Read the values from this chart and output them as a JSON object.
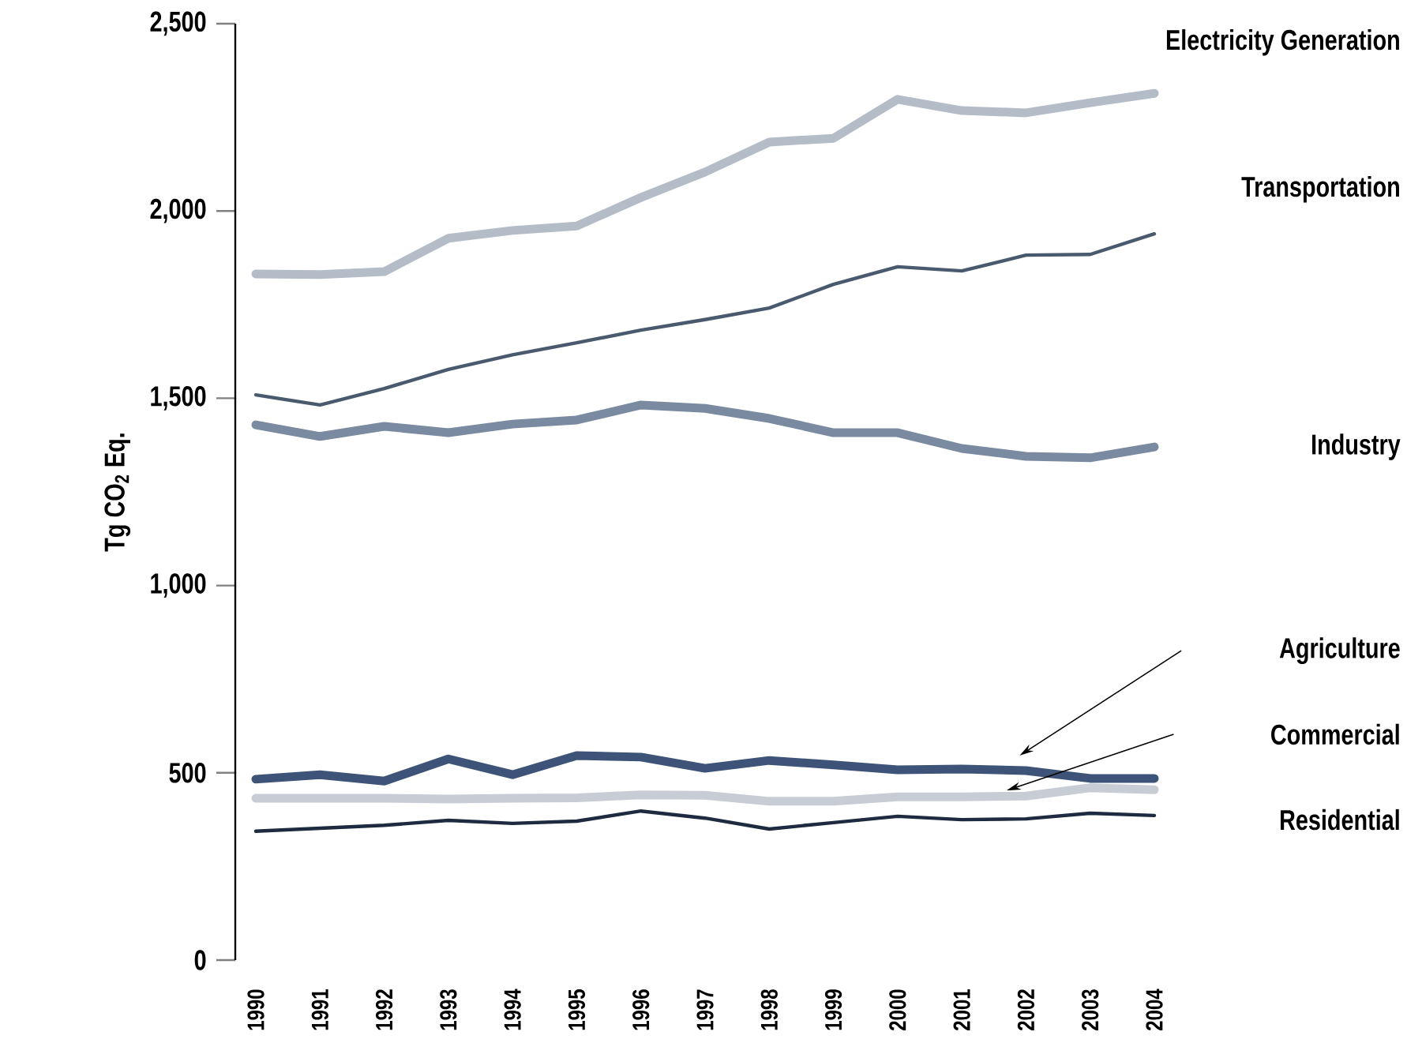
{
  "chart_data": {
    "type": "line",
    "ylabel": "Tg CO$_{2}$ Eq.",
    "categories": [
      "1990",
      "1991",
      "1992",
      "1993",
      "1994",
      "1995",
      "1996",
      "1997",
      "1998",
      "1999",
      "2000",
      "2001",
      "2002",
      "2003",
      "2004"
    ],
    "ylim": [
      0,
      2500
    ],
    "yticks": [
      0,
      500,
      {
        "value": 1000,
        "label": "1,000"
      },
      {
        "value": 1500,
        "label": "1,500"
      },
      {
        "value": 2000,
        "label": "2,000"
      },
      {
        "value": 2500,
        "label": "2,500"
      }
    ],
    "grid": false,
    "legend": false,
    "marker": "none",
    "line_style": "solid",
    "series": [
      {
        "name": "Electricity Generation",
        "color": "#b4bcc8",
        "values": [
          1832,
          1830,
          1838,
          1927,
          1948,
          1960,
          2036,
          2104,
          2184,
          2194,
          2298,
          2268,
          2262,
          2289,
          2314
        ]
      },
      {
        "name": "Transportation",
        "color": "#4a5a6e",
        "values": [
          1509,
          1482,
          1526,
          1577,
          1616,
          1648,
          1682,
          1710,
          1741,
          1804,
          1851,
          1840,
          1882,
          1884,
          1939
        ]
      },
      {
        "name": "Industry",
        "color": "#7a8aa0",
        "values": [
          1429,
          1398,
          1425,
          1408,
          1431,
          1442,
          1482,
          1473,
          1446,
          1408,
          1408,
          1366,
          1345,
          1341,
          1370
        ]
      },
      {
        "name": "Agriculture",
        "color": "#3d5478",
        "values": [
          483,
          495,
          478,
          537,
          495,
          546,
          542,
          512,
          533,
          521,
          508,
          510,
          506,
          485,
          485
        ]
      },
      {
        "name": "Commercial",
        "color": "#c8ccd4",
        "values": [
          432,
          432,
          432,
          430,
          432,
          433,
          441,
          440,
          424,
          424,
          436,
          436,
          438,
          460,
          455
        ]
      },
      {
        "name": "Residential",
        "color": "#1e2a40",
        "values": [
          344,
          352,
          360,
          373,
          365,
          371,
          398,
          379,
          350,
          367,
          384,
          375,
          377,
          392,
          386
        ]
      }
    ]
  }
}
